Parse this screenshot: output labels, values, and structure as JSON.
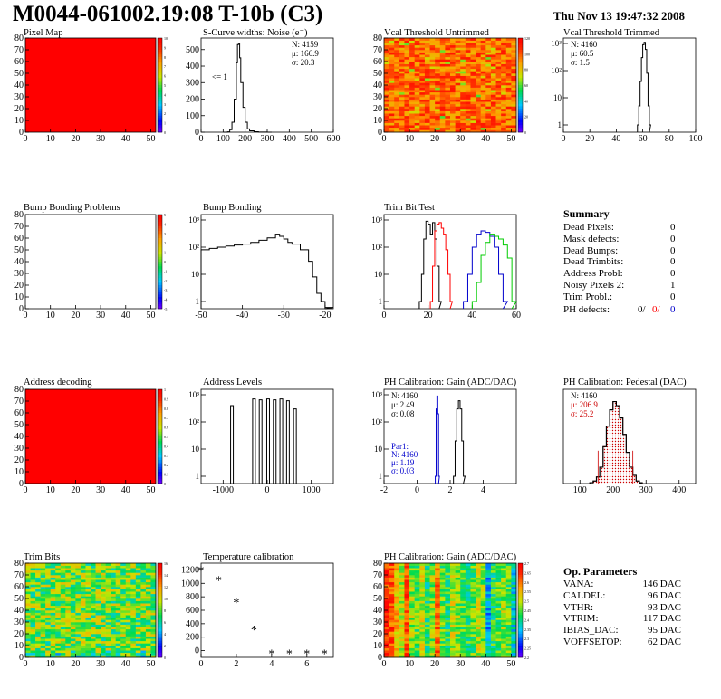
{
  "header": {
    "title": "M0044-061002.19:08 T-10b (C3)",
    "date": "Thu Nov 13 19:47:32 2008"
  },
  "colors": {
    "red": "#ff0000",
    "black": "#000000",
    "blue": "#0000cc",
    "green": "#00cc00",
    "hatch_red": "#cc0000"
  },
  "chart_data": [
    {
      "id": "pixel_map",
      "type": "heatmap",
      "title": "Pixel Map",
      "xticks": [
        0,
        10,
        20,
        30,
        40,
        50
      ],
      "yticks": [
        0,
        10,
        20,
        30,
        40,
        50,
        60,
        70,
        80
      ],
      "xlim": [
        0,
        52
      ],
      "ylim": [
        0,
        80
      ],
      "fill": "uniform-max",
      "palette_ticks": [
        "10",
        "9",
        "8",
        "7",
        "6",
        "5",
        "4",
        "3",
        "2",
        "1",
        "0"
      ]
    },
    {
      "id": "scurve_noise",
      "type": "line",
      "title": "S-Curve widths: Noise (e⁻)",
      "xticks": [
        0,
        100,
        200,
        300,
        400,
        500,
        600
      ],
      "yticks": [
        0,
        100,
        200,
        300,
        400,
        500
      ],
      "xlim": [
        0,
        600
      ],
      "ylim": [
        0,
        570
      ],
      "stats": [
        "N: 4159",
        "μ: 166.9",
        "σ: 20.3"
      ],
      "underflow_label": "<= 1",
      "x": [
        100,
        120,
        130,
        140,
        150,
        160,
        165,
        170,
        175,
        180,
        190,
        200,
        210,
        220,
        240,
        260,
        280,
        300
      ],
      "values": [
        0,
        2,
        15,
        60,
        200,
        420,
        530,
        540,
        450,
        300,
        150,
        60,
        20,
        8,
        3,
        1,
        1,
        0
      ]
    },
    {
      "id": "vcal_untrimmed",
      "type": "heatmap",
      "title": "Vcal Threshold Untrimmed",
      "xticks": [
        0,
        10,
        20,
        30,
        40,
        50
      ],
      "yticks": [
        0,
        10,
        20,
        30,
        40,
        50,
        60,
        70,
        80
      ],
      "xlim": [
        0,
        52
      ],
      "ylim": [
        0,
        80
      ],
      "fill": "noise-high",
      "palette_ticks": [
        "120",
        "100",
        "80",
        "60",
        "40",
        "20",
        "0"
      ]
    },
    {
      "id": "vcal_trimmed",
      "type": "line",
      "title": "Vcal Threshold Trimmed",
      "log_y": true,
      "xticks": [
        0,
        20,
        40,
        60,
        80,
        100
      ],
      "ylog_ticks": [
        "1",
        "10",
        "10²",
        "10³"
      ],
      "xlim": [
        0,
        100
      ],
      "stats": [
        "N: 4160",
        "μ: 60.5",
        "σ: 1.5"
      ],
      "x": [
        56,
        57,
        58,
        59,
        60,
        61,
        62,
        63,
        64,
        65
      ],
      "values": [
        1,
        5,
        40,
        300,
        900,
        1100,
        600,
        80,
        5,
        1
      ]
    },
    {
      "id": "bump_problems",
      "type": "heatmap",
      "title": "Bump Bonding Problems",
      "xticks": [
        0,
        10,
        20,
        30,
        40,
        50
      ],
      "yticks": [
        0,
        10,
        20,
        30,
        40,
        50,
        60,
        70,
        80
      ],
      "xlim": [
        0,
        52
      ],
      "ylim": [
        0,
        80
      ],
      "fill": "empty",
      "palette_ticks": [
        "5",
        "4",
        "3",
        "2",
        "1",
        "0",
        "-1",
        "-2",
        "-3",
        "-4",
        "-5"
      ]
    },
    {
      "id": "bump_bonding",
      "type": "line",
      "title": "Bump Bonding",
      "log_y": true,
      "xticks": [
        -50,
        -40,
        -30,
        -20
      ],
      "ylog_ticks": [
        "1",
        "10",
        "10²",
        "10³"
      ],
      "xlim": [
        -50,
        -18
      ],
      "x": [
        -50,
        -48,
        -46,
        -44,
        -42,
        -40,
        -38,
        -36,
        -34,
        -32,
        -31,
        -30,
        -29,
        -28,
        -26,
        -24,
        -23,
        -22,
        -21,
        -20
      ],
      "values": [
        80,
        90,
        100,
        110,
        120,
        130,
        150,
        180,
        220,
        300,
        250,
        200,
        150,
        130,
        80,
        30,
        8,
        2,
        1,
        0.6
      ]
    },
    {
      "id": "trim_bit_test",
      "type": "line",
      "title": "Trim Bit Test",
      "log_y": true,
      "xticks": [
        0,
        20,
        40,
        60
      ],
      "ylog_ticks": [
        "1",
        "10",
        "10²",
        "10³"
      ],
      "xlim": [
        0,
        60
      ],
      "series": [
        {
          "x": [
            16,
            17,
            18,
            19,
            20,
            21,
            22,
            23,
            24,
            25
          ],
          "values": [
            1,
            10,
            200,
            900,
            700,
            300,
            800,
            200,
            20,
            1
          ]
        },
        {
          "x": [
            21,
            22,
            23,
            24,
            25,
            26,
            27,
            28,
            29,
            30
          ],
          "values": [
            1,
            20,
            400,
            700,
            800,
            500,
            300,
            80,
            10,
            1
          ]
        },
        {
          "x": [
            36,
            38,
            40,
            42,
            44,
            46,
            48,
            50,
            52,
            54
          ],
          "values": [
            1,
            10,
            100,
            300,
            400,
            350,
            250,
            100,
            10,
            1
          ]
        },
        {
          "x": [
            40,
            42,
            44,
            46,
            48,
            50,
            52,
            54,
            56,
            58
          ],
          "values": [
            1,
            5,
            50,
            150,
            300,
            250,
            200,
            120,
            40,
            1
          ]
        }
      ]
    },
    {
      "id": "address_decoding",
      "type": "heatmap",
      "title": "Address decoding",
      "xticks": [
        0,
        10,
        20,
        30,
        40,
        50
      ],
      "yticks": [
        0,
        10,
        20,
        30,
        40,
        50,
        60,
        70,
        80
      ],
      "xlim": [
        0,
        52
      ],
      "ylim": [
        0,
        80
      ],
      "fill": "uniform-max",
      "palette_ticks": [
        "1",
        "0.9",
        "0.8",
        "0.7",
        "0.6",
        "0.5",
        "0.4",
        "0.3",
        "0.2",
        "0.1",
        "0"
      ]
    },
    {
      "id": "address_levels",
      "type": "bar",
      "title": "Address Levels",
      "log_y": true,
      "xticks": [
        -1000,
        0,
        1000
      ],
      "ylog_ticks": [
        "1",
        "10",
        "10²",
        "10³"
      ],
      "xlim": [
        -1500,
        1500
      ],
      "x": [
        -800,
        -300,
        -150,
        20,
        170,
        320,
        470,
        630
      ],
      "values": [
        400,
        700,
        650,
        700,
        650,
        700,
        600,
        300
      ]
    },
    {
      "id": "ph_gain_1d",
      "type": "line",
      "title": "PH Calibration: Gain (ADC/DAC)",
      "log_y": true,
      "xticks": [
        -2,
        0,
        2,
        4
      ],
      "ylog_ticks": [
        "1",
        "10",
        "10²",
        "10³"
      ],
      "xlim": [
        -2,
        6
      ],
      "stats": [
        "N: 4160",
        "μ: 2.49",
        "σ: 0.08"
      ],
      "stats2": [
        "Par1:",
        "N: 4160",
        "μ: 1.19",
        "σ: 0.03"
      ],
      "series": [
        {
          "x": [
            2.2,
            2.3,
            2.4,
            2.5,
            2.6,
            2.7,
            2.8
          ],
          "values": [
            1,
            20,
            300,
            600,
            300,
            20,
            1
          ]
        },
        {
          "x": [
            1.1,
            1.15,
            1.2,
            1.25,
            1.3
          ],
          "values": [
            1,
            300,
            900,
            200,
            1
          ]
        }
      ]
    },
    {
      "id": "ph_pedestal",
      "type": "line",
      "title": "PH Calibration: Pedestal (DAC)",
      "xticks": [
        100,
        200,
        300,
        400
      ],
      "xlim": [
        50,
        450
      ],
      "stats": [
        "N: 4160",
        "μ: 206.9",
        "σ: 25.2"
      ],
      "x": [
        130,
        140,
        150,
        160,
        170,
        180,
        190,
        200,
        210,
        220,
        230,
        240,
        250,
        260,
        270,
        280
      ],
      "values": [
        1,
        3,
        8,
        20,
        45,
        70,
        90,
        100,
        95,
        80,
        60,
        38,
        20,
        10,
        3,
        1
      ]
    },
    {
      "id": "trim_bits",
      "type": "heatmap",
      "title": "Trim Bits",
      "xticks": [
        0,
        10,
        20,
        30,
        40,
        50
      ],
      "yticks": [
        0,
        10,
        20,
        30,
        40,
        50,
        60,
        70,
        80
      ],
      "xlim": [
        0,
        52
      ],
      "ylim": [
        0,
        80
      ],
      "fill": "noise-mid",
      "palette_ticks": [
        "16",
        "14",
        "12",
        "10",
        "8",
        "6",
        "4",
        "2",
        "0"
      ]
    },
    {
      "id": "temperature_calibration",
      "type": "scatter",
      "title": "Temperature calibration",
      "xticks": [
        0,
        2,
        4,
        6
      ],
      "yticks": [
        0,
        200,
        400,
        600,
        800,
        1000,
        1200
      ],
      "xlim": [
        0,
        7.5
      ],
      "ylim": [
        -100,
        1300
      ],
      "x": [
        0,
        1,
        2,
        3,
        4,
        5,
        6,
        7
      ],
      "values": [
        1200,
        1050,
        720,
        320,
        -40,
        -40,
        -40,
        -40
      ]
    },
    {
      "id": "ph_gain_map",
      "type": "heatmap",
      "title": "PH Calibration: Gain (ADC/DAC)",
      "xticks": [
        0,
        10,
        20,
        30,
        40,
        50
      ],
      "yticks": [
        0,
        10,
        20,
        30,
        40,
        50,
        60,
        70,
        80
      ],
      "xlim": [
        0,
        52
      ],
      "ylim": [
        0,
        80
      ],
      "fill": "columns",
      "palette_ticks": [
        "2.7",
        "2.65",
        "2.6",
        "2.55",
        "2.5",
        "2.45",
        "2.4",
        "2.35",
        "2.3",
        "2.25",
        "2.2"
      ]
    }
  ],
  "summary": {
    "title": "Summary",
    "rows": [
      {
        "label": "Dead Pixels:",
        "value": "0"
      },
      {
        "label": "Mask defects:",
        "value": "0"
      },
      {
        "label": "Dead Bumps:",
        "value": "0"
      },
      {
        "label": "Dead Trimbits:",
        "value": "0"
      },
      {
        "label": "Address Probl:",
        "value": "0"
      },
      {
        "label": "Noisy Pixels 2:",
        "value": "1"
      },
      {
        "label": "Trim Probl.:",
        "value": "0"
      }
    ],
    "ph_label": "PH defects:",
    "ph_values": [
      "0/",
      "0/",
      "0"
    ]
  },
  "op_params": {
    "title": "Op. Parameters",
    "rows": [
      {
        "label": "VANA:",
        "value": "146 DAC"
      },
      {
        "label": "CALDEL:",
        "value": "96 DAC"
      },
      {
        "label": "VTHR:",
        "value": "93 DAC"
      },
      {
        "label": "VTRIM:",
        "value": "117 DAC"
      },
      {
        "label": "IBIAS_DAC:",
        "value": "95 DAC"
      },
      {
        "label": "VOFFSETOP:",
        "value": "62 DAC"
      }
    ]
  }
}
